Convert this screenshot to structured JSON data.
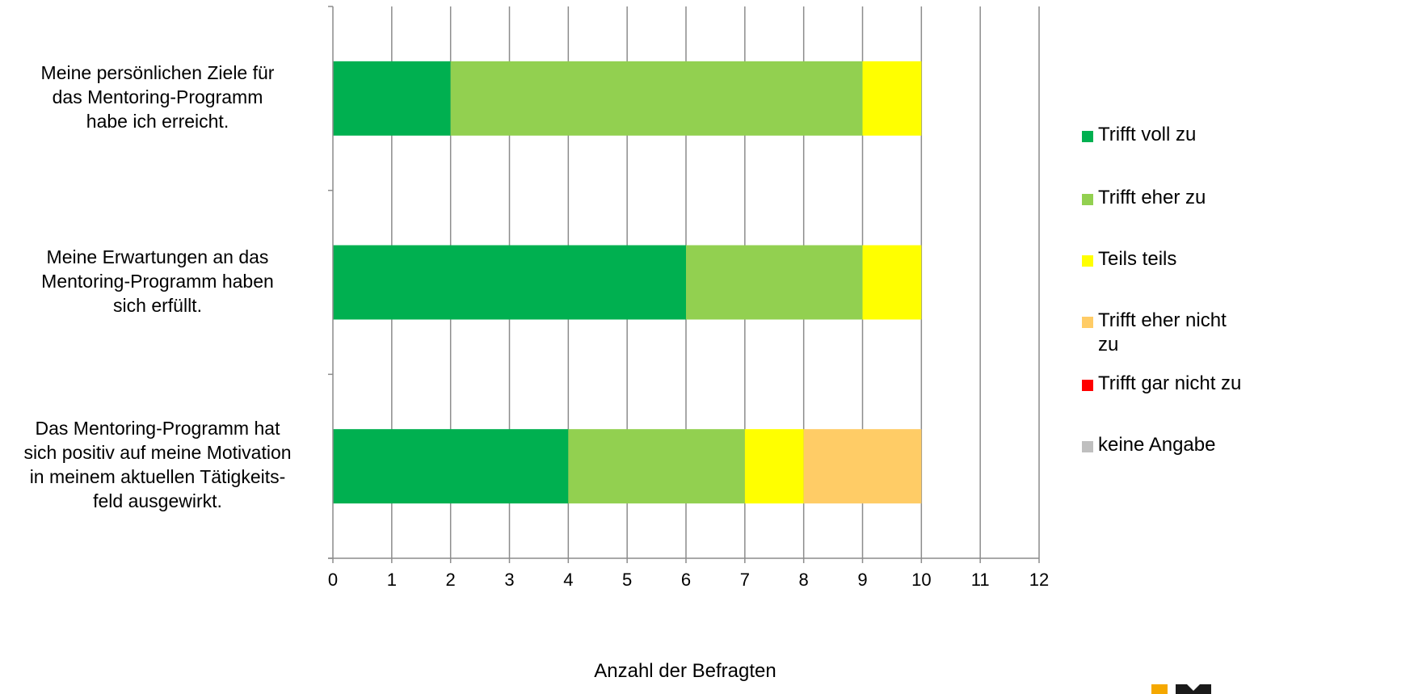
{
  "chart_data": {
    "type": "bar",
    "orientation": "horizontal",
    "stacked": true,
    "categories": [
      "Meine persönlichen Ziele für das Mentoring-Programm habe ich erreicht.",
      "Meine Erwartungen an das Mentoring-Programm haben sich erfüllt.",
      "Das Mentoring-Programm hat sich positiv auf meine Motivation in meinem aktuellen Tätigkeits-feld ausgewirkt."
    ],
    "category_lines": [
      [
        "Meine persönlichen Ziele für",
        "das Mentoring-Programm",
        "habe ich erreicht."
      ],
      [
        "Meine Erwartungen an das",
        "Mentoring-Programm haben",
        "sich erfüllt."
      ],
      [
        "Das Mentoring-Programm hat",
        "sich positiv auf meine Motivation",
        "in meinem aktuellen Tätigkeits-",
        "feld ausgewirkt."
      ]
    ],
    "series": [
      {
        "name": "Trifft voll zu",
        "color": "#00b050",
        "values": [
          2,
          6,
          4
        ]
      },
      {
        "name": "Trifft eher zu",
        "color": "#92d050",
        "values": [
          7,
          3,
          3
        ]
      },
      {
        "name": "Teils teils",
        "color": "#ffff00",
        "values": [
          1,
          1,
          1
        ]
      },
      {
        "name": "Trifft eher nicht zu",
        "color": "#ffcc66",
        "values": [
          0,
          0,
          2
        ]
      },
      {
        "name": "Trifft gar nicht zu",
        "color": "#ff0000",
        "values": [
          0,
          0,
          0
        ]
      },
      {
        "name": "keine Angabe",
        "color": "#bfbfbf",
        "values": [
          0,
          0,
          0
        ]
      }
    ],
    "xlabel": "Anzahl der Befragten",
    "xlim": [
      0,
      12
    ],
    "xticks": [
      "0",
      "1",
      "2",
      "3",
      "4",
      "5",
      "6",
      "7",
      "8",
      "9",
      "10",
      "11",
      "12"
    ],
    "grid": "vertical",
    "legend_position": "right"
  },
  "legend_lines": [
    [
      "Trifft voll zu"
    ],
    [
      "Trifft eher zu"
    ],
    [
      "Teils teils"
    ],
    [
      "Trifft eher nicht",
      "zu"
    ],
    [
      "Trifft gar nicht zu"
    ],
    [
      "keine Angabe"
    ]
  ],
  "logo_colors": {
    "accent": "#f5a800",
    "dark": "#1a1a1a"
  }
}
